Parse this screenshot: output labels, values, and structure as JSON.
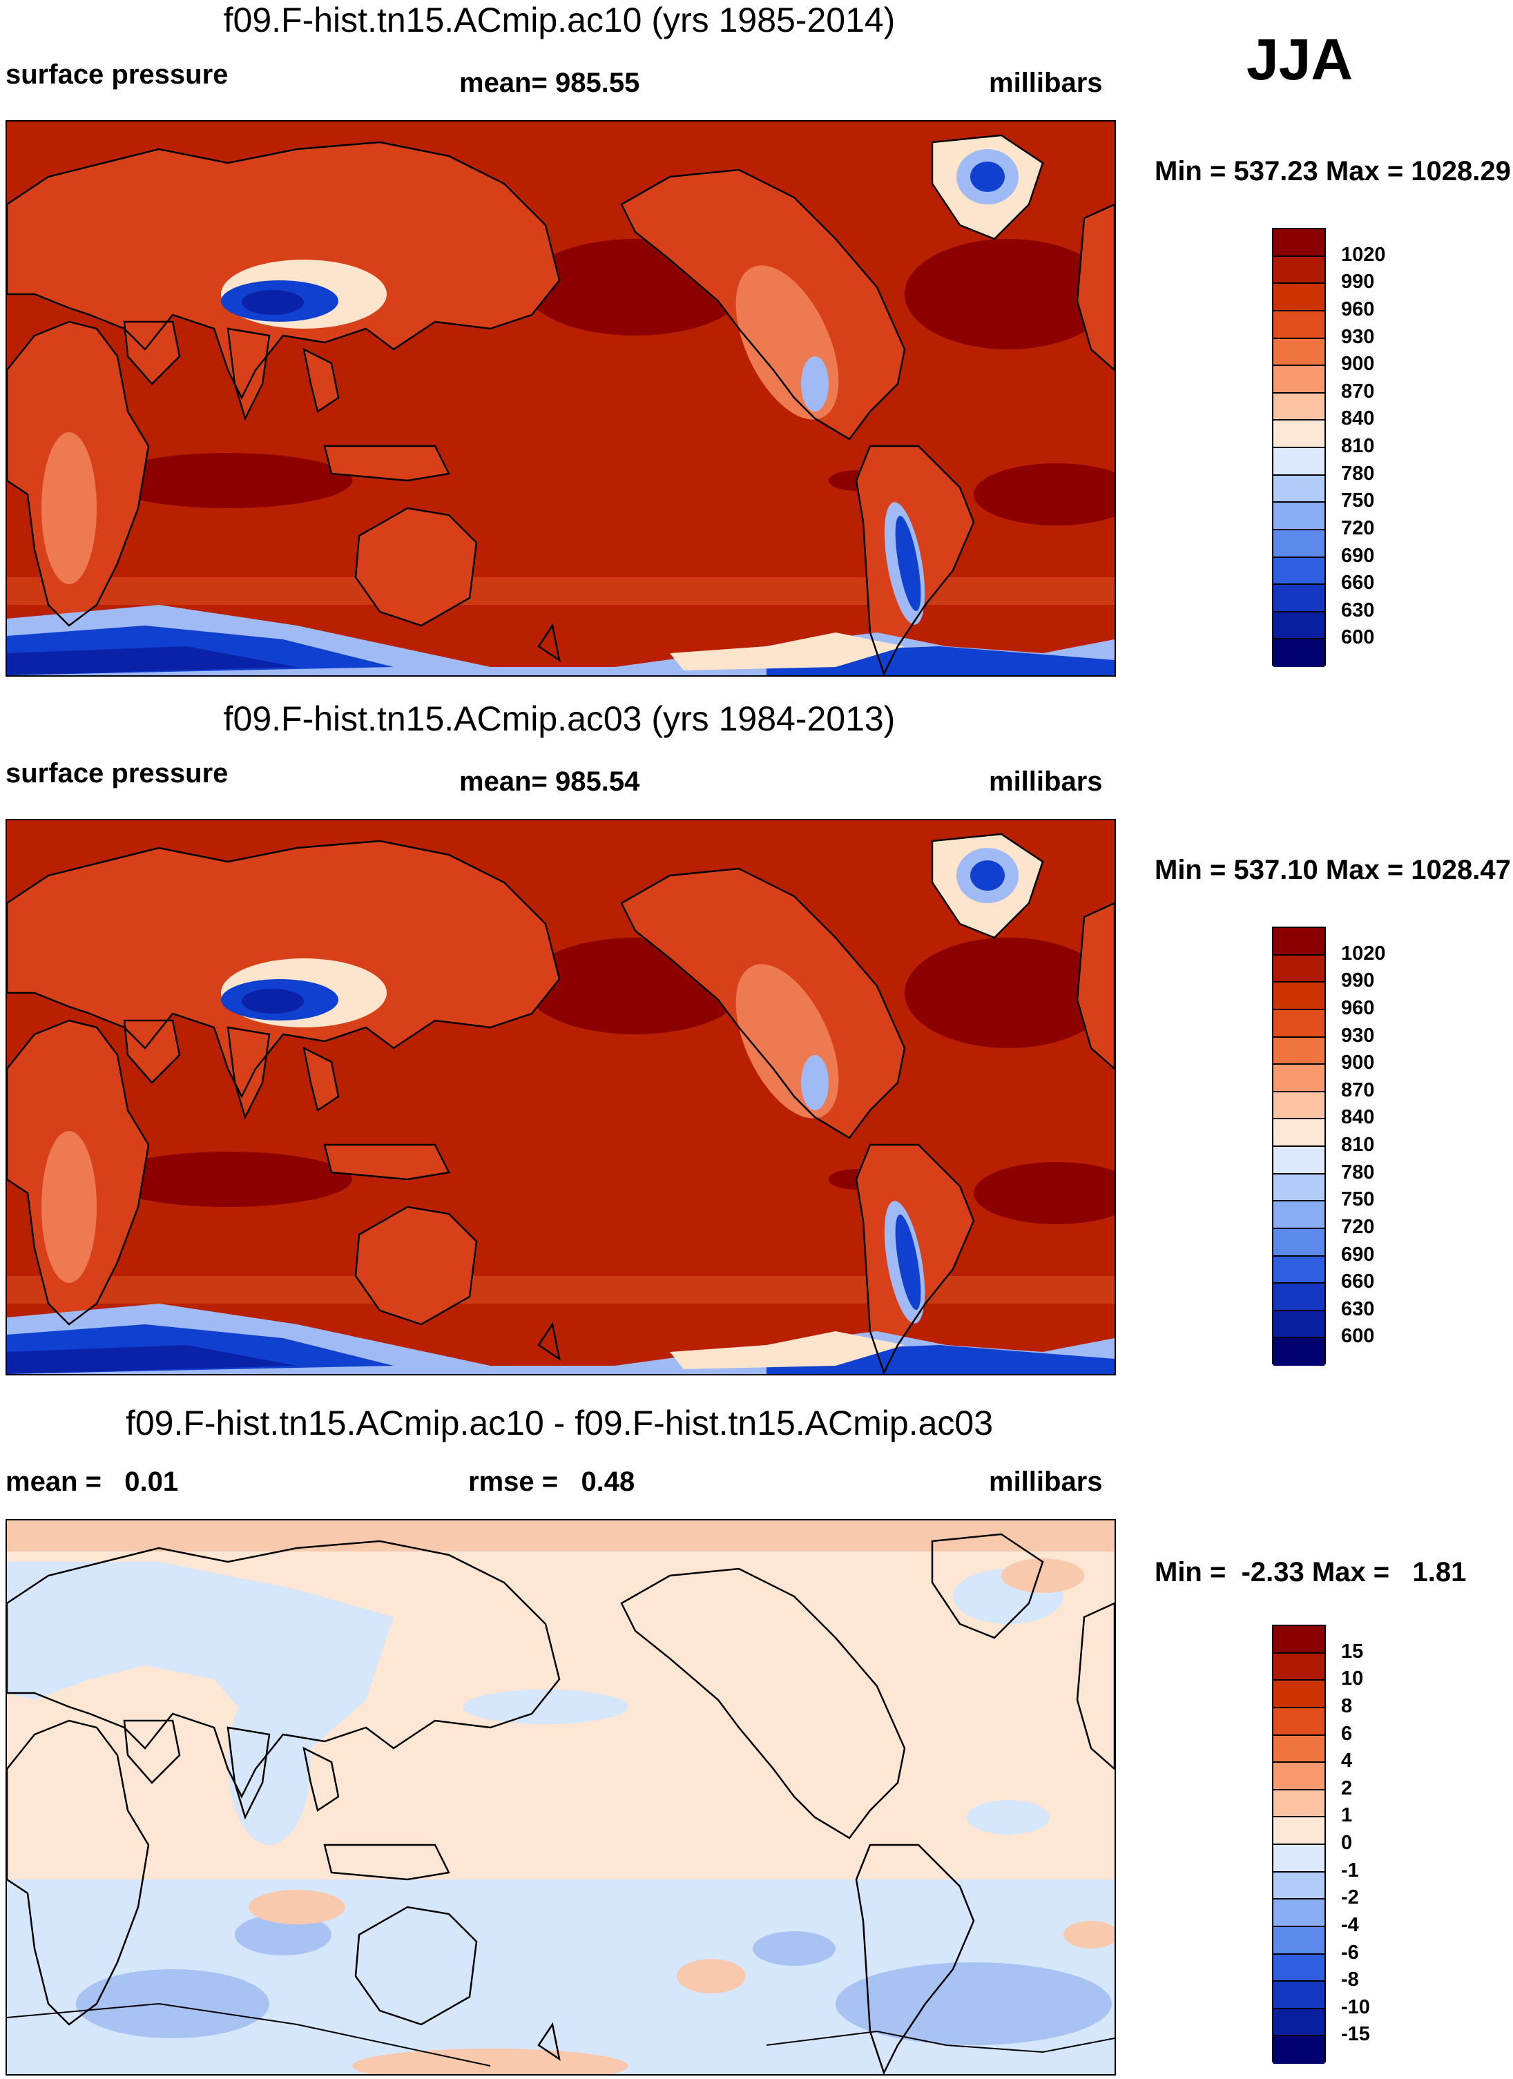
{
  "season": "JJA",
  "panels": [
    {
      "title": "f09.F-hist.tn15.ACmip.ac10 (yrs 1985-2014)",
      "left_label": "surface pressure",
      "center_label": "mean= 985.55",
      "units": "millibars",
      "minmax": "Min = 537.23 Max = 1028.29",
      "colors": {
        "ocean": "#b82000",
        "high": "#8c0000",
        "land": "#d8401a",
        "landlight": "#ee7a52",
        "ice": "#1040d0",
        "iceDeep": "#0a22a8",
        "iceLight": "#9fbaf5",
        "pale": "#fde4cc"
      }
    },
    {
      "title": "f09.F-hist.tn15.ACmip.ac03 (yrs 1984-2013)",
      "left_label": "surface pressure",
      "center_label": "mean= 985.54",
      "units": "millibars",
      "minmax": "Min = 537.10 Max = 1028.47",
      "colors": {
        "ocean": "#b82000",
        "high": "#8c0000",
        "land": "#d8401a",
        "landlight": "#ee7a52",
        "ice": "#1040d0",
        "iceDeep": "#0a22a8",
        "iceLight": "#9fbaf5",
        "pale": "#fde4cc"
      }
    },
    {
      "title": "f09.F-hist.tn15.ACmip.ac10 - f09.F-hist.tn15.ACmip.ac03",
      "left_label": "mean =   0.01",
      "center_label": "rmse =   0.48",
      "units": "millibars",
      "minmax": "Min =  -2.33 Max =   1.81",
      "colors": {
        "base": "#fde6d4",
        "neg": "#d6e6fb",
        "neg2": "#a9c2f4",
        "pos": "#f8c9ad",
        "pos2": "#f3a582"
      }
    }
  ],
  "colorbars": [
    {
      "labels": [
        "1020",
        "990",
        "960",
        "930",
        "900",
        "870",
        "840",
        "810",
        "780",
        "750",
        "720",
        "690",
        "660",
        "630",
        "600"
      ],
      "colors": [
        "#8a0000",
        "#b01a00",
        "#cc3300",
        "#e24e1c",
        "#f07440",
        "#f89a6e",
        "#fcc3a2",
        "#fde8d8",
        "#ddeafd",
        "#b3cbf8",
        "#8aaef4",
        "#5c89ec",
        "#2f5fe0",
        "#1538c2",
        "#0a1fa0",
        "#00006e"
      ]
    },
    {
      "labels": [
        "1020",
        "990",
        "960",
        "930",
        "900",
        "870",
        "840",
        "810",
        "780",
        "750",
        "720",
        "690",
        "660",
        "630",
        "600"
      ],
      "colors": [
        "#8a0000",
        "#b01a00",
        "#cc3300",
        "#e24e1c",
        "#f07440",
        "#f89a6e",
        "#fcc3a2",
        "#fde8d8",
        "#ddeafd",
        "#b3cbf8",
        "#8aaef4",
        "#5c89ec",
        "#2f5fe0",
        "#1538c2",
        "#0a1fa0",
        "#00006e"
      ]
    },
    {
      "labels": [
        "15",
        "10",
        "8",
        "6",
        "4",
        "2",
        "1",
        "0",
        "-1",
        "-2",
        "-4",
        "-6",
        "-8",
        "-10",
        "-15"
      ],
      "colors": [
        "#8a0000",
        "#b01a00",
        "#cc3300",
        "#e24e1c",
        "#f07440",
        "#f89a6e",
        "#fcc3a2",
        "#fde8d8",
        "#ddeafd",
        "#b3cbf8",
        "#8aaef4",
        "#5c89ec",
        "#2f5fe0",
        "#1538c2",
        "#0a1fa0",
        "#00006e"
      ]
    }
  ]
}
